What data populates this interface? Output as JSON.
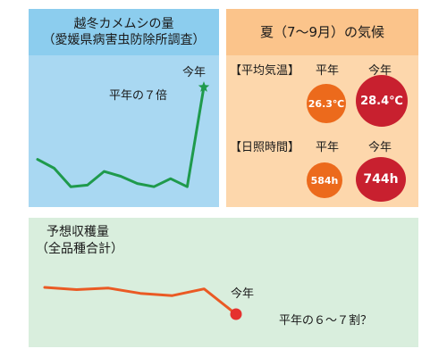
{
  "stinkbug": {
    "title_line1": "越冬カメムシの量",
    "title_line2": "（愛媛県病害虫防除所調査）",
    "today_label": "今年",
    "ratio_text": "平年の７倍",
    "colors": {
      "line": "#1f9a4c",
      "star": "#1f9a4c",
      "header": "#8ccdee",
      "body": "#a9d8f2"
    }
  },
  "weather": {
    "title": "夏（7～9月）の気候",
    "temp_label": "【平均気温】",
    "sun_label": "【日照時間】",
    "normal_col": "平年",
    "this_year_col": "今年",
    "temp_normal": "26.3℃",
    "temp_this_year": "28.4℃",
    "sun_normal": "584h",
    "sun_this_year": "744h",
    "colors": {
      "normal": "#ec6a1c",
      "this_year": "#c8202f",
      "header": "#fbc48b",
      "body": "#fdd7ac"
    }
  },
  "harvest": {
    "title_line1": "予想収穫量",
    "title_line2": "（全品種合計）",
    "today_label": "今年",
    "forecast_text": "平年の６～７割？",
    "colors": {
      "line": "#ea5a24",
      "dot": "#e5312f",
      "body": "#d9eedd"
    }
  },
  "chart_data": [
    {
      "type": "line",
      "title": "越冬カメムシの量",
      "subtitle": "（愛媛県病害虫防除所調査）",
      "series": [
        {
          "values": [
            4.6,
            3.5,
            1.2,
            1.4,
            3.1,
            2.5,
            1.6,
            1.2,
            2.2,
            1.2,
            13.6
          ]
        }
      ],
      "annotations": [
        "今年",
        "平年の７倍"
      ],
      "grid": false
    },
    {
      "type": "line",
      "title": "予想収穫量",
      "subtitle": "（全品種合計）",
      "series": [
        {
          "values": [
            98,
            95,
            97,
            90,
            87,
            96,
            62
          ]
        }
      ],
      "annotations": [
        "今年",
        "平年の６～７割？"
      ],
      "grid": false
    }
  ]
}
